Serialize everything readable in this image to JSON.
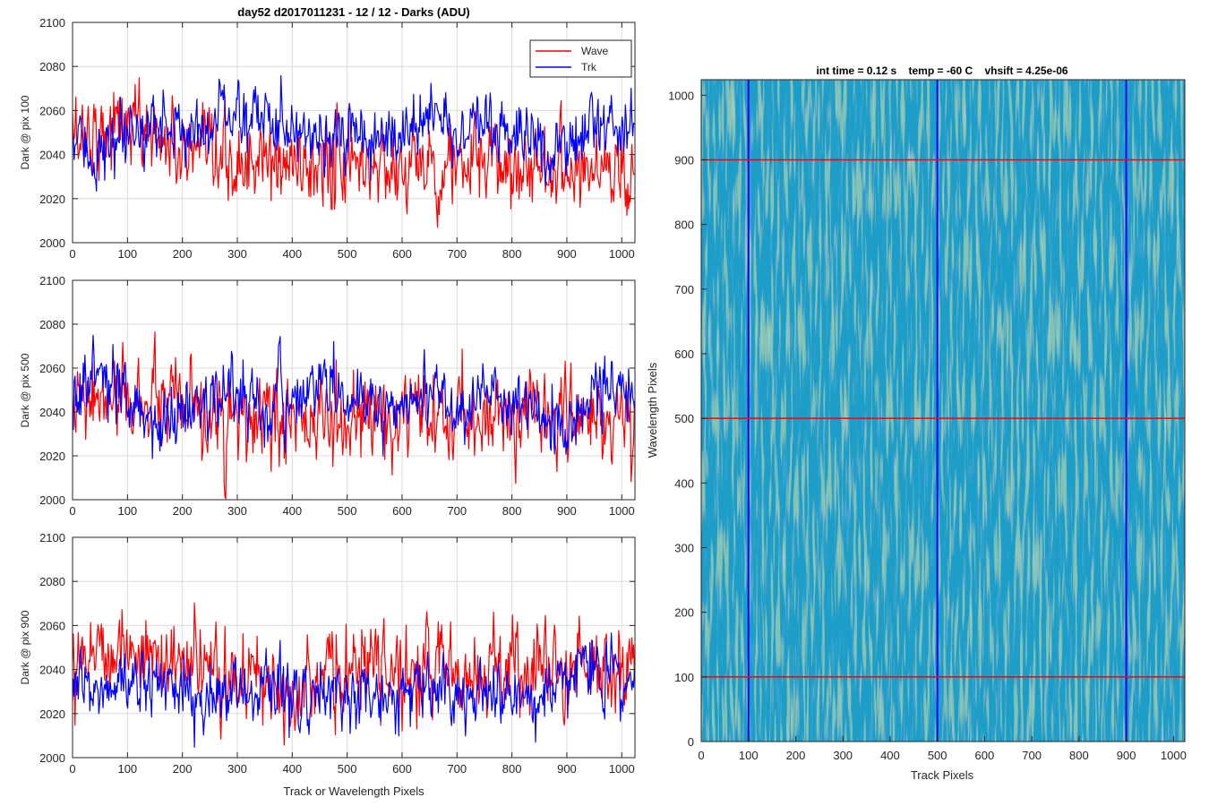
{
  "figure": {
    "title": "day52 d2017011231 - 12 / 12 - Darks (ADU)"
  },
  "chart_data": [
    {
      "type": "line",
      "panel": "top",
      "title": "day52 d2017011231 - 12 / 12 - Darks (ADU)",
      "xlabel": "",
      "ylabel": "Dark @ pix 100",
      "xlim": [
        0,
        1024
      ],
      "ylim": [
        2000,
        2100
      ],
      "xticks": [
        0,
        100,
        200,
        300,
        400,
        500,
        600,
        700,
        800,
        900,
        1000
      ],
      "yticks": [
        2000,
        2020,
        2040,
        2060,
        2080,
        2100
      ],
      "grid": true,
      "legend": "top-right",
      "series": [
        {
          "name": "Wave",
          "color": "#ff0000",
          "x": [
            0,
            50,
            100,
            150,
            200,
            250,
            300,
            350,
            400,
            450,
            500,
            550,
            600,
            650,
            700,
            750,
            800,
            850,
            900,
            950,
            1024
          ],
          "values": [
            2050,
            2050,
            2055,
            2050,
            2040,
            2035,
            2035,
            2035,
            2035,
            2035,
            2035,
            2035,
            2035,
            2035,
            2035,
            2035,
            2035,
            2035,
            2035,
            2035,
            2035
          ]
        },
        {
          "name": "Trk",
          "color": "#0000ff",
          "x": [
            0,
            50,
            100,
            150,
            200,
            250,
            300,
            350,
            400,
            450,
            500,
            550,
            600,
            650,
            700,
            750,
            800,
            850,
            900,
            950,
            1024
          ],
          "values": [
            2045,
            2040,
            2045,
            2055,
            2050,
            2055,
            2060,
            2055,
            2055,
            2050,
            2045,
            2045,
            2050,
            2060,
            2050,
            2050,
            2048,
            2045,
            2045,
            2055,
            2052
          ]
        }
      ]
    },
    {
      "type": "line",
      "panel": "middle",
      "xlabel": "",
      "ylabel": "Dark @ pix 500",
      "xlim": [
        0,
        1024
      ],
      "ylim": [
        2000,
        2100
      ],
      "xticks": [
        0,
        100,
        200,
        300,
        400,
        500,
        600,
        700,
        800,
        900,
        1000
      ],
      "yticks": [
        2000,
        2020,
        2040,
        2060,
        2080,
        2100
      ],
      "grid": true,
      "series": [
        {
          "name": "Wave",
          "color": "#ff0000",
          "x": [
            0,
            50,
            100,
            150,
            200,
            250,
            300,
            350,
            400,
            450,
            500,
            550,
            600,
            650,
            700,
            750,
            800,
            850,
            900,
            950,
            1024
          ],
          "values": [
            2040,
            2045,
            2045,
            2045,
            2040,
            2035,
            2035,
            2035,
            2035,
            2035,
            2035,
            2035,
            2035,
            2035,
            2035,
            2038,
            2040,
            2040,
            2038,
            2038,
            2035
          ]
        },
        {
          "name": "Trk",
          "color": "#0000ff",
          "x": [
            0,
            50,
            100,
            150,
            200,
            250,
            300,
            350,
            400,
            450,
            500,
            550,
            600,
            650,
            700,
            750,
            800,
            850,
            900,
            950,
            1024
          ],
          "values": [
            2045,
            2060,
            2040,
            2035,
            2040,
            2045,
            2050,
            2040,
            2045,
            2055,
            2045,
            2040,
            2045,
            2050,
            2045,
            2045,
            2042,
            2042,
            2030,
            2050,
            2050
          ]
        }
      ]
    },
    {
      "type": "line",
      "panel": "bottom",
      "xlabel": "Track or Wavelength Pixels",
      "ylabel": "Dark @ pix 900",
      "xlim": [
        0,
        1024
      ],
      "ylim": [
        2000,
        2100
      ],
      "xticks": [
        0,
        100,
        200,
        300,
        400,
        500,
        600,
        700,
        800,
        900,
        1000
      ],
      "yticks": [
        2000,
        2020,
        2040,
        2060,
        2080,
        2100
      ],
      "grid": true,
      "series": [
        {
          "name": "Wave",
          "color": "#ff0000",
          "x": [
            0,
            50,
            100,
            150,
            200,
            250,
            300,
            350,
            400,
            450,
            500,
            550,
            600,
            650,
            700,
            750,
            800,
            850,
            900,
            950,
            1024
          ],
          "values": [
            2050,
            2050,
            2050,
            2045,
            2042,
            2038,
            2035,
            2035,
            2035,
            2035,
            2038,
            2040,
            2040,
            2040,
            2040,
            2040,
            2040,
            2040,
            2040,
            2040,
            2040
          ]
        },
        {
          "name": "Trk",
          "color": "#0000ff",
          "x": [
            0,
            50,
            100,
            150,
            200,
            250,
            300,
            350,
            400,
            450,
            500,
            550,
            600,
            650,
            700,
            750,
            800,
            850,
            900,
            950,
            1024
          ],
          "values": [
            2030,
            2030,
            2035,
            2035,
            2030,
            2025,
            2030,
            2035,
            2030,
            2025,
            2030,
            2030,
            2030,
            2030,
            2025,
            2030,
            2030,
            2025,
            2040,
            2040,
            2035
          ]
        }
      ]
    },
    {
      "type": "heatmap",
      "panel": "right",
      "title": "int time = 0.12 s    temp = -60 C    vhsift = 4.25e-06",
      "xlabel": "Track Pixels",
      "ylabel": "Wavelength Pixels",
      "xlim": [
        0,
        1024
      ],
      "ylim": [
        0,
        1024
      ],
      "xticks": [
        0,
        100,
        200,
        300,
        400,
        500,
        600,
        700,
        800,
        900,
        1000
      ],
      "yticks": [
        0,
        100,
        200,
        300,
        400,
        500,
        600,
        700,
        800,
        900,
        1000
      ],
      "colormap": "parula",
      "colors": {
        "base": "#1a9ec8",
        "high": "#b8c860",
        "low": "#1f6fc8"
      },
      "vertical_markers": {
        "color": "#0000ff",
        "x": [
          100,
          500,
          900
        ]
      },
      "horizontal_markers": {
        "color": "#ff0000",
        "y": [
          100,
          500,
          900
        ]
      }
    }
  ]
}
